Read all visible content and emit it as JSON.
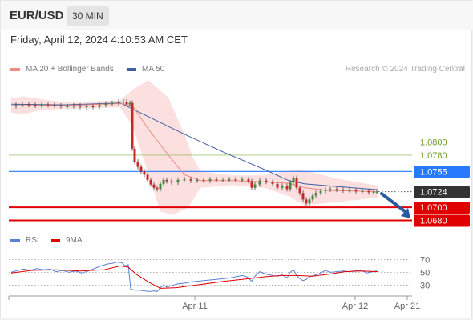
{
  "header": {
    "symbol": "EUR/USD",
    "timeframe": "30 MIN"
  },
  "datetime": "Friday, April 12, 2024 4:10:53 AM CET",
  "legend": {
    "ma20": {
      "label": "MA 20 + Bollinger Bands",
      "color": "#f28b82"
    },
    "ma50": {
      "label": "MA 50",
      "color": "#3f5fa0"
    },
    "rsi": {
      "label": "RSI",
      "color": "#5b7fd6"
    },
    "ma9": {
      "label": "9MA",
      "color": "#e00000"
    }
  },
  "credit": "Research © 2024 Trading Central",
  "chart_data": [
    {
      "type": "candlestick",
      "title": "EUR/USD 30 MIN",
      "x_ticks": [
        "Apr 11",
        "Apr 12",
        "Apr 21"
      ],
      "ylim": [
        1.0672,
        1.0905
      ],
      "price_levels": [
        {
          "value": 1.08,
          "label": "1.0800",
          "role": "resistance",
          "color": "#7cb342"
        },
        {
          "value": 1.078,
          "label": "1.0780",
          "role": "resistance",
          "color": "#7cb342"
        },
        {
          "value": 1.0755,
          "label": "1.0755",
          "role": "pivot",
          "color": "#2979ff"
        },
        {
          "value": 1.07,
          "label": "1.0700",
          "role": "target",
          "color": "#e00000"
        },
        {
          "value": 1.068,
          "label": "1.0680",
          "role": "target",
          "color": "#e00000"
        }
      ],
      "last_price": {
        "value": 1.0724,
        "label": "1.0724"
      },
      "price_series": [
        {
          "x": 12,
          "v": 1.0855
        },
        {
          "x": 20,
          "v": 1.0857
        },
        {
          "x": 28,
          "v": 1.0858
        },
        {
          "x": 36,
          "v": 1.0857
        },
        {
          "x": 44,
          "v": 1.0856
        },
        {
          "x": 52,
          "v": 1.0858
        },
        {
          "x": 60,
          "v": 1.0857
        },
        {
          "x": 68,
          "v": 1.0856
        },
        {
          "x": 76,
          "v": 1.0855
        },
        {
          "x": 84,
          "v": 1.0855
        },
        {
          "x": 92,
          "v": 1.0856
        },
        {
          "x": 100,
          "v": 1.0854
        },
        {
          "x": 108,
          "v": 1.0855
        },
        {
          "x": 116,
          "v": 1.0854
        },
        {
          "x": 124,
          "v": 1.0857
        },
        {
          "x": 132,
          "v": 1.0859
        },
        {
          "x": 140,
          "v": 1.086
        },
        {
          "x": 148,
          "v": 1.0862
        },
        {
          "x": 154,
          "v": 1.0862
        },
        {
          "x": 158,
          "v": 1.0858
        },
        {
          "x": 162,
          "v": 1.086
        },
        {
          "x": 165,
          "v": 1.079
        },
        {
          "x": 168,
          "v": 1.077
        },
        {
          "x": 172,
          "v": 1.0762
        },
        {
          "x": 176,
          "v": 1.0755
        },
        {
          "x": 180,
          "v": 1.075
        },
        {
          "x": 184,
          "v": 1.0742
        },
        {
          "x": 188,
          "v": 1.0735
        },
        {
          "x": 192,
          "v": 1.073
        },
        {
          "x": 196,
          "v": 1.0728
        },
        {
          "x": 200,
          "v": 1.0736
        },
        {
          "x": 204,
          "v": 1.0742
        },
        {
          "x": 208,
          "v": 1.074
        },
        {
          "x": 214,
          "v": 1.0738
        },
        {
          "x": 222,
          "v": 1.0742
        },
        {
          "x": 230,
          "v": 1.0743
        },
        {
          "x": 238,
          "v": 1.0741
        },
        {
          "x": 246,
          "v": 1.0742
        },
        {
          "x": 254,
          "v": 1.0741
        },
        {
          "x": 262,
          "v": 1.0743
        },
        {
          "x": 270,
          "v": 1.0742
        },
        {
          "x": 278,
          "v": 1.0742
        },
        {
          "x": 286,
          "v": 1.0743
        },
        {
          "x": 294,
          "v": 1.0742
        },
        {
          "x": 302,
          "v": 1.0743
        },
        {
          "x": 310,
          "v": 1.074
        },
        {
          "x": 314,
          "v": 1.073
        },
        {
          "x": 318,
          "v": 1.0735
        },
        {
          "x": 324,
          "v": 1.0741
        },
        {
          "x": 332,
          "v": 1.0739
        },
        {
          "x": 340,
          "v": 1.0736
        },
        {
          "x": 346,
          "v": 1.073
        },
        {
          "x": 352,
          "v": 1.0733
        },
        {
          "x": 358,
          "v": 1.0728
        },
        {
          "x": 362,
          "v": 1.0738
        },
        {
          "x": 366,
          "v": 1.0745
        },
        {
          "x": 370,
          "v": 1.073
        },
        {
          "x": 374,
          "v": 1.0722
        },
        {
          "x": 378,
          "v": 1.0712
        },
        {
          "x": 382,
          "v": 1.0706
        },
        {
          "x": 386,
          "v": 1.0712
        },
        {
          "x": 390,
          "v": 1.0718
        },
        {
          "x": 394,
          "v": 1.0722
        },
        {
          "x": 400,
          "v": 1.0725
        },
        {
          "x": 406,
          "v": 1.0727
        },
        {
          "x": 412,
          "v": 1.0728
        },
        {
          "x": 420,
          "v": 1.0727
        },
        {
          "x": 428,
          "v": 1.0726
        },
        {
          "x": 436,
          "v": 1.0726
        },
        {
          "x": 444,
          "v": 1.0725
        },
        {
          "x": 452,
          "v": 1.0725
        },
        {
          "x": 460,
          "v": 1.0723
        },
        {
          "x": 466,
          "v": 1.0724
        },
        {
          "x": 470,
          "v": 1.0724
        }
      ],
      "ma50_series": [
        {
          "x": 14,
          "v": 1.0858
        },
        {
          "x": 80,
          "v": 1.0857
        },
        {
          "x": 150,
          "v": 1.086
        },
        {
          "x": 180,
          "v": 1.0842
        },
        {
          "x": 230,
          "v": 1.0812
        },
        {
          "x": 280,
          "v": 1.0784
        },
        {
          "x": 330,
          "v": 1.0758
        },
        {
          "x": 360,
          "v": 1.0741
        },
        {
          "x": 380,
          "v": 1.0736
        },
        {
          "x": 420,
          "v": 1.0732
        },
        {
          "x": 450,
          "v": 1.0729
        },
        {
          "x": 472,
          "v": 1.0727
        }
      ],
      "ma20_series": [
        {
          "x": 14,
          "v": 1.0856
        },
        {
          "x": 80,
          "v": 1.0856
        },
        {
          "x": 150,
          "v": 1.0859
        },
        {
          "x": 165,
          "v": 1.0856
        },
        {
          "x": 185,
          "v": 1.082
        },
        {
          "x": 210,
          "v": 1.078
        },
        {
          "x": 230,
          "v": 1.075
        },
        {
          "x": 250,
          "v": 1.0741
        },
        {
          "x": 290,
          "v": 1.0741
        },
        {
          "x": 330,
          "v": 1.0739
        },
        {
          "x": 360,
          "v": 1.0737
        },
        {
          "x": 380,
          "v": 1.073
        },
        {
          "x": 410,
          "v": 1.0726
        },
        {
          "x": 440,
          "v": 1.0725
        },
        {
          "x": 472,
          "v": 1.0724
        }
      ],
      "bb_upper": [
        {
          "x": 14,
          "v": 1.0867
        },
        {
          "x": 30,
          "v": 1.087
        },
        {
          "x": 50,
          "v": 1.0866
        },
        {
          "x": 80,
          "v": 1.0861
        },
        {
          "x": 150,
          "v": 1.0864
        },
        {
          "x": 165,
          "v": 1.088
        },
        {
          "x": 185,
          "v": 1.0895
        },
        {
          "x": 210,
          "v": 1.0868
        },
        {
          "x": 230,
          "v": 1.0812
        },
        {
          "x": 240,
          "v": 1.0778
        },
        {
          "x": 250,
          "v": 1.0755
        },
        {
          "x": 290,
          "v": 1.0749
        },
        {
          "x": 330,
          "v": 1.0749
        },
        {
          "x": 360,
          "v": 1.0756
        },
        {
          "x": 380,
          "v": 1.0757
        },
        {
          "x": 420,
          "v": 1.0744
        },
        {
          "x": 450,
          "v": 1.0738
        },
        {
          "x": 472,
          "v": 1.0733
        }
      ],
      "bb_lower": [
        {
          "x": 14,
          "v": 1.0845
        },
        {
          "x": 30,
          "v": 1.0843
        },
        {
          "x": 50,
          "v": 1.0849
        },
        {
          "x": 80,
          "v": 1.0851
        },
        {
          "x": 150,
          "v": 1.0853
        },
        {
          "x": 165,
          "v": 1.0825
        },
        {
          "x": 180,
          "v": 1.077
        },
        {
          "x": 200,
          "v": 1.0694
        },
        {
          "x": 215,
          "v": 1.0688
        },
        {
          "x": 235,
          "v": 1.07
        },
        {
          "x": 250,
          "v": 1.073
        },
        {
          "x": 290,
          "v": 1.0734
        },
        {
          "x": 330,
          "v": 1.073
        },
        {
          "x": 360,
          "v": 1.0717
        },
        {
          "x": 380,
          "v": 1.0703
        },
        {
          "x": 420,
          "v": 1.0708
        },
        {
          "x": 450,
          "v": 1.0712
        },
        {
          "x": 472,
          "v": 1.0715
        }
      ],
      "forecast_arrow": {
        "from": {
          "x": 476,
          "v": 1.0721
        },
        "to": {
          "x": 510,
          "v": 1.0688
        }
      }
    },
    {
      "type": "line",
      "title": "RSI",
      "ylim": [
        18,
        78
      ],
      "y_ticks": [
        70,
        50,
        30
      ],
      "series": [
        {
          "name": "RSI",
          "color": "#5b7fd6",
          "points": [
            {
              "x": 14,
              "v": 50
            },
            {
              "x": 22,
              "v": 53
            },
            {
              "x": 30,
              "v": 55
            },
            {
              "x": 38,
              "v": 53
            },
            {
              "x": 46,
              "v": 56
            },
            {
              "x": 54,
              "v": 54
            },
            {
              "x": 62,
              "v": 55
            },
            {
              "x": 70,
              "v": 51
            },
            {
              "x": 78,
              "v": 53
            },
            {
              "x": 86,
              "v": 50
            },
            {
              "x": 94,
              "v": 52
            },
            {
              "x": 102,
              "v": 49
            },
            {
              "x": 110,
              "v": 52
            },
            {
              "x": 118,
              "v": 56
            },
            {
              "x": 126,
              "v": 60
            },
            {
              "x": 134,
              "v": 63
            },
            {
              "x": 140,
              "v": 64
            },
            {
              "x": 146,
              "v": 66
            },
            {
              "x": 152,
              "v": 65
            },
            {
              "x": 156,
              "v": 60
            },
            {
              "x": 160,
              "v": 62
            },
            {
              "x": 163,
              "v": 24
            },
            {
              "x": 168,
              "v": 22
            },
            {
              "x": 174,
              "v": 22
            },
            {
              "x": 180,
              "v": 21
            },
            {
              "x": 186,
              "v": 20
            },
            {
              "x": 192,
              "v": 21
            },
            {
              "x": 196,
              "v": 20
            },
            {
              "x": 200,
              "v": 26
            },
            {
              "x": 204,
              "v": 30
            },
            {
              "x": 208,
              "v": 27
            },
            {
              "x": 214,
              "v": 29
            },
            {
              "x": 222,
              "v": 32
            },
            {
              "x": 230,
              "v": 33
            },
            {
              "x": 238,
              "v": 35
            },
            {
              "x": 246,
              "v": 36
            },
            {
              "x": 254,
              "v": 37
            },
            {
              "x": 262,
              "v": 38
            },
            {
              "x": 270,
              "v": 39
            },
            {
              "x": 278,
              "v": 40
            },
            {
              "x": 286,
              "v": 41
            },
            {
              "x": 294,
              "v": 43
            },
            {
              "x": 302,
              "v": 45
            },
            {
              "x": 308,
              "v": 43
            },
            {
              "x": 314,
              "v": 36
            },
            {
              "x": 318,
              "v": 44
            },
            {
              "x": 324,
              "v": 51
            },
            {
              "x": 332,
              "v": 47
            },
            {
              "x": 340,
              "v": 45
            },
            {
              "x": 346,
              "v": 44
            },
            {
              "x": 352,
              "v": 46
            },
            {
              "x": 358,
              "v": 41
            },
            {
              "x": 362,
              "v": 50
            },
            {
              "x": 366,
              "v": 54
            },
            {
              "x": 370,
              "v": 45
            },
            {
              "x": 374,
              "v": 40
            },
            {
              "x": 378,
              "v": 37
            },
            {
              "x": 382,
              "v": 39
            },
            {
              "x": 386,
              "v": 43
            },
            {
              "x": 392,
              "v": 45
            },
            {
              "x": 400,
              "v": 49
            },
            {
              "x": 406,
              "v": 53
            },
            {
              "x": 412,
              "v": 50
            },
            {
              "x": 420,
              "v": 51
            },
            {
              "x": 428,
              "v": 52
            },
            {
              "x": 436,
              "v": 51
            },
            {
              "x": 444,
              "v": 53
            },
            {
              "x": 452,
              "v": 52
            },
            {
              "x": 458,
              "v": 49
            },
            {
              "x": 464,
              "v": 51
            },
            {
              "x": 470,
              "v": 52
            }
          ]
        },
        {
          "name": "9MA",
          "color": "#e00000",
          "points": [
            {
              "x": 14,
              "v": 49
            },
            {
              "x": 40,
              "v": 53
            },
            {
              "x": 70,
              "v": 54
            },
            {
              "x": 100,
              "v": 52
            },
            {
              "x": 130,
              "v": 54
            },
            {
              "x": 150,
              "v": 60
            },
            {
              "x": 160,
              "v": 58
            },
            {
              "x": 170,
              "v": 47
            },
            {
              "x": 185,
              "v": 35
            },
            {
              "x": 200,
              "v": 25
            },
            {
              "x": 220,
              "v": 26
            },
            {
              "x": 250,
              "v": 31
            },
            {
              "x": 280,
              "v": 36
            },
            {
              "x": 310,
              "v": 40
            },
            {
              "x": 330,
              "v": 43
            },
            {
              "x": 350,
              "v": 45
            },
            {
              "x": 370,
              "v": 45
            },
            {
              "x": 390,
              "v": 44
            },
            {
              "x": 410,
              "v": 47
            },
            {
              "x": 430,
              "v": 51
            },
            {
              "x": 450,
              "v": 52
            },
            {
              "x": 472,
              "v": 51
            }
          ]
        }
      ]
    }
  ]
}
